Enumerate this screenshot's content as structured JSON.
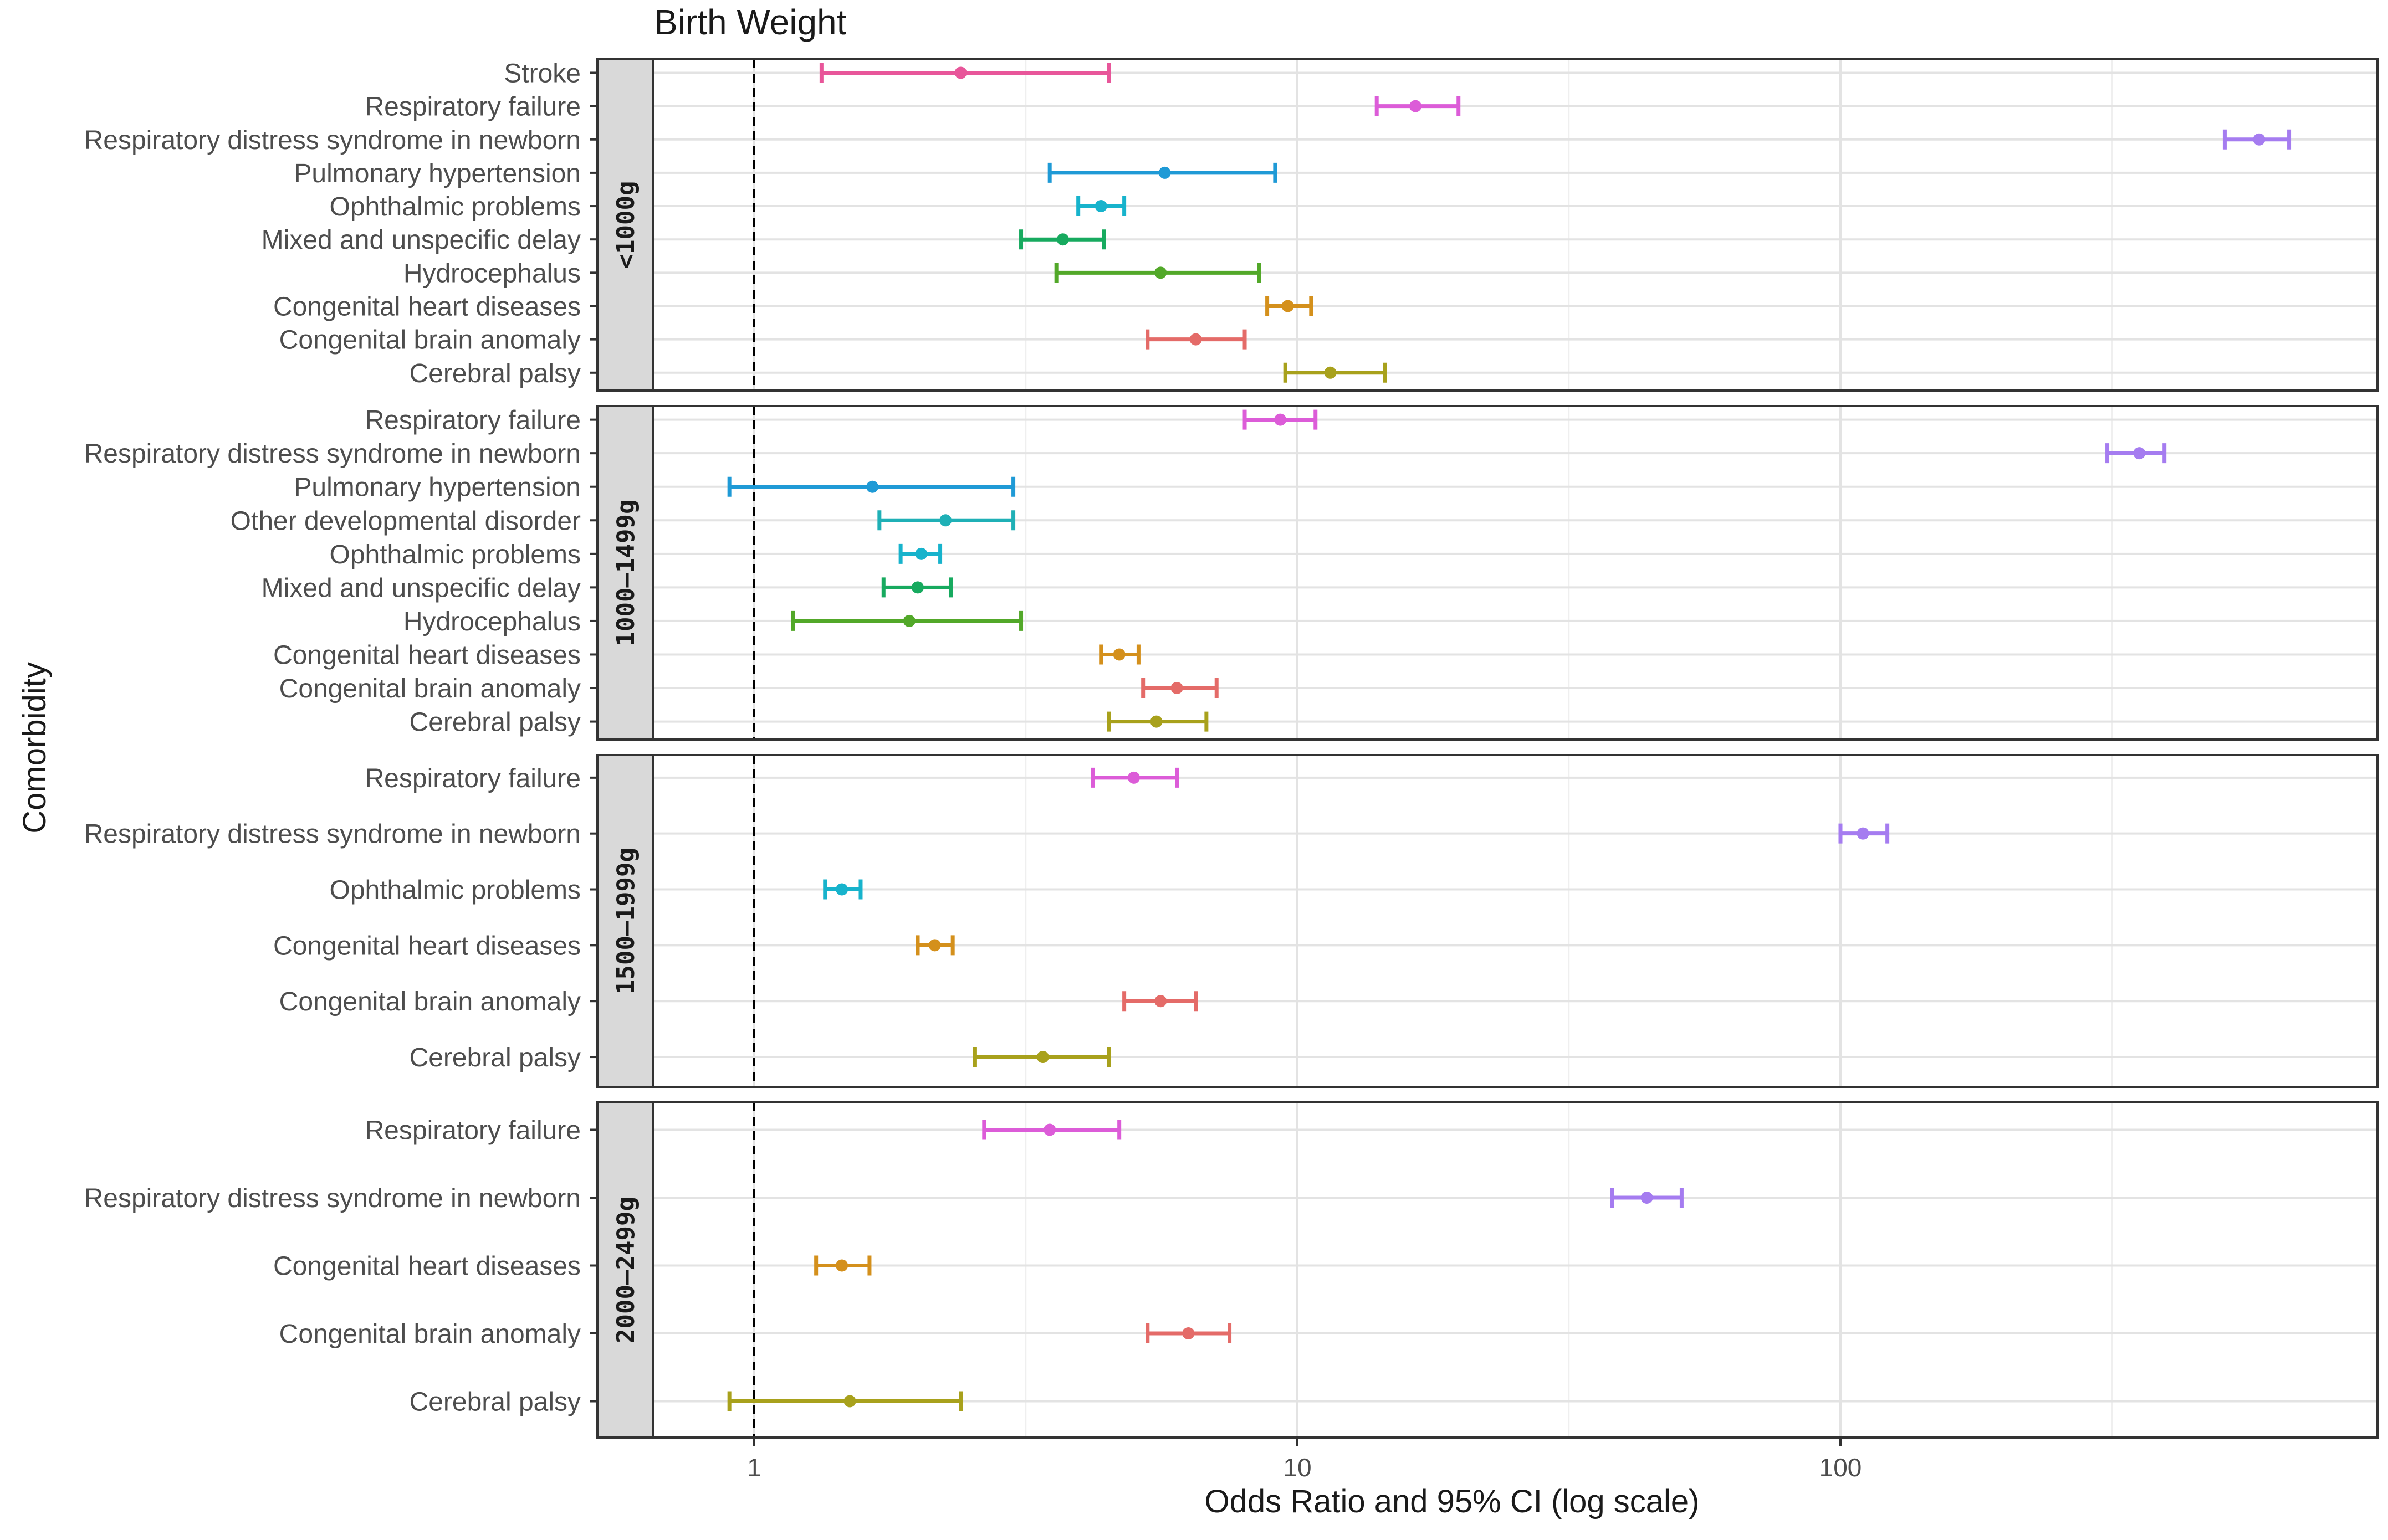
{
  "chart_data": {
    "type": "forest",
    "title": "Birth Weight",
    "xlabel": "Odds Ratio and 95% CI (log scale)",
    "ylabel": "Comorbidity",
    "x_scale": "log10",
    "xlim": [
      0.57,
      900
    ],
    "x_ticks": [
      1,
      10,
      100
    ],
    "x_tick_labels": [
      "1",
      "10",
      "100"
    ],
    "reference_line": 1,
    "grid": true,
    "colors": {
      "Stroke": "#e8569a",
      "Respiratory failure": "#dc5cd8",
      "Respiratory distress syndrome in newborn": "#a57cf0",
      "Pulmonary hypertension": "#1f9ad6",
      "Other developmental disorder": "#1fb0b6",
      "Ophthalmic problems": "#17b3cc",
      "Mixed and unspecific delay": "#17aa5f",
      "Hydrocephalus": "#52a829",
      "Congenital heart diseases": "#d4901c",
      "Congenital brain anomaly": "#e46b68",
      "Cerebral palsy": "#a8a11c"
    },
    "facets": [
      {
        "label": "<1000g",
        "rows": [
          {
            "label": "Stroke",
            "or": 2.4,
            "lo": 1.33,
            "hi": 4.5
          },
          {
            "label": "Respiratory failure",
            "or": 16.5,
            "lo": 14.0,
            "hi": 19.8
          },
          {
            "label": "Respiratory distress syndrome in newborn",
            "or": 590,
            "lo": 510,
            "hi": 670
          },
          {
            "label": "Pulmonary hypertension",
            "or": 5.7,
            "lo": 3.5,
            "hi": 9.1
          },
          {
            "label": "Ophthalmic problems",
            "or": 4.35,
            "lo": 3.95,
            "hi": 4.8
          },
          {
            "label": "Mixed and unspecific delay",
            "or": 3.7,
            "lo": 3.1,
            "hi": 4.4
          },
          {
            "label": "Hydrocephalus",
            "or": 5.6,
            "lo": 3.6,
            "hi": 8.5
          },
          {
            "label": "Congenital heart diseases",
            "or": 9.6,
            "lo": 8.8,
            "hi": 10.6
          },
          {
            "label": "Congenital brain anomaly",
            "or": 6.5,
            "lo": 5.3,
            "hi": 8.0
          },
          {
            "label": "Cerebral palsy",
            "or": 11.5,
            "lo": 9.5,
            "hi": 14.5
          }
        ]
      },
      {
        "label": "1000–1499g",
        "rows": [
          {
            "label": "Respiratory failure",
            "or": 9.3,
            "lo": 8.0,
            "hi": 10.8
          },
          {
            "label": "Respiratory distress syndrome in newborn",
            "or": 355,
            "lo": 310,
            "hi": 395
          },
          {
            "label": "Pulmonary hypertension",
            "or": 1.65,
            "lo": 0.9,
            "hi": 3.0
          },
          {
            "label": "Other developmental disorder",
            "or": 2.25,
            "lo": 1.7,
            "hi": 3.0
          },
          {
            "label": "Ophthalmic problems",
            "or": 2.03,
            "lo": 1.86,
            "hi": 2.2
          },
          {
            "label": "Mixed and unspecific delay",
            "or": 2.0,
            "lo": 1.73,
            "hi": 2.3
          },
          {
            "label": "Hydrocephalus",
            "or": 1.93,
            "lo": 1.18,
            "hi": 3.1
          },
          {
            "label": "Congenital heart diseases",
            "or": 4.7,
            "lo": 4.35,
            "hi": 5.1
          },
          {
            "label": "Congenital brain anomaly",
            "or": 6.0,
            "lo": 5.2,
            "hi": 7.1
          },
          {
            "label": "Cerebral palsy",
            "or": 5.5,
            "lo": 4.5,
            "hi": 6.8
          }
        ]
      },
      {
        "label": "1500–1999g",
        "rows": [
          {
            "label": "Respiratory failure",
            "or": 5.0,
            "lo": 4.2,
            "hi": 6.0
          },
          {
            "label": "Respiratory distress syndrome in newborn",
            "or": 110,
            "lo": 100,
            "hi": 122
          },
          {
            "label": "Ophthalmic problems",
            "or": 1.45,
            "lo": 1.35,
            "hi": 1.57
          },
          {
            "label": "Congenital heart diseases",
            "or": 2.15,
            "lo": 2.0,
            "hi": 2.32
          },
          {
            "label": "Congenital brain anomaly",
            "or": 5.6,
            "lo": 4.8,
            "hi": 6.5
          },
          {
            "label": "Cerebral palsy",
            "or": 3.4,
            "lo": 2.55,
            "hi": 4.5
          }
        ]
      },
      {
        "label": "2000–2499g",
        "rows": [
          {
            "label": "Respiratory failure",
            "or": 3.5,
            "lo": 2.65,
            "hi": 4.7
          },
          {
            "label": "Respiratory distress syndrome in newborn",
            "or": 44,
            "lo": 38,
            "hi": 51
          },
          {
            "label": "Congenital heart diseases",
            "or": 1.45,
            "lo": 1.3,
            "hi": 1.63
          },
          {
            "label": "Congenital brain anomaly",
            "or": 6.3,
            "lo": 5.3,
            "hi": 7.5
          },
          {
            "label": "Cerebral palsy",
            "or": 1.5,
            "lo": 0.9,
            "hi": 2.4
          }
        ]
      }
    ]
  }
}
